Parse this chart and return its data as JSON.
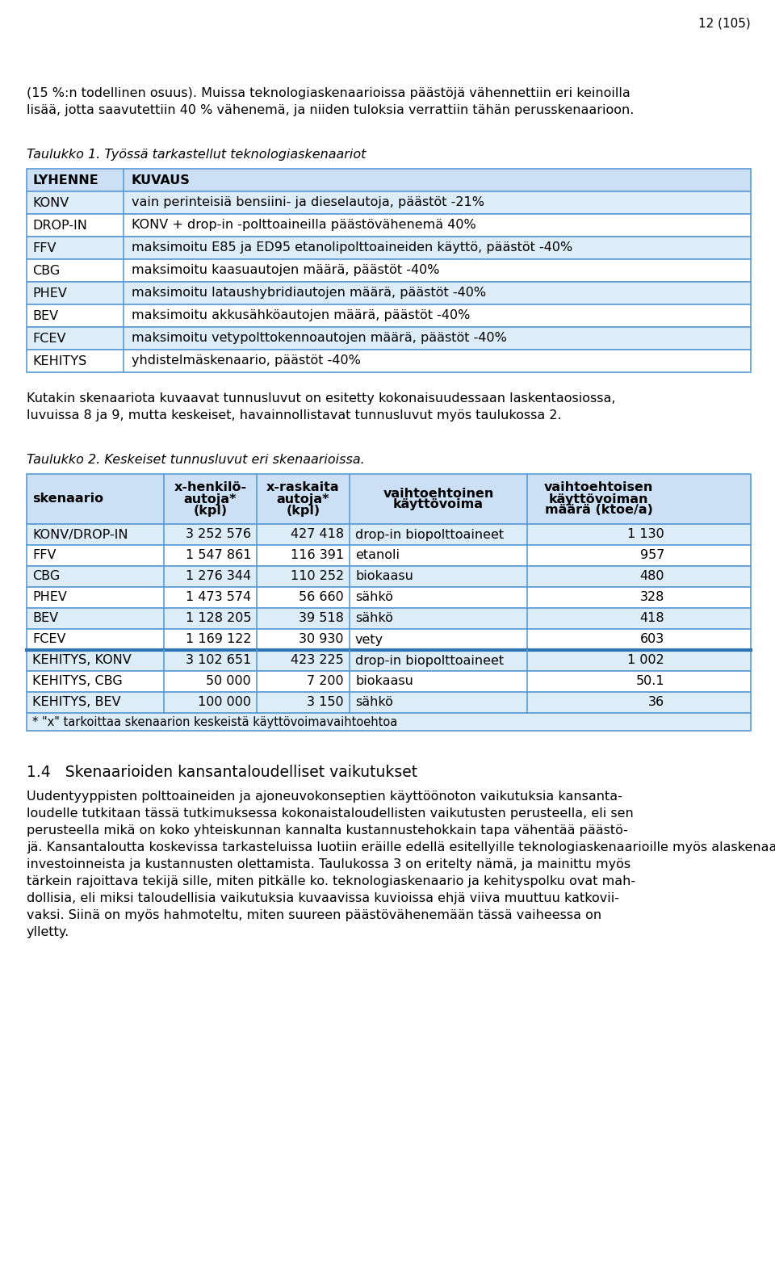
{
  "page_number": "12 (105)",
  "bg_color": "#ffffff",
  "text_color": "#000000",
  "header_bg": "#cce0f5",
  "row_bg_light": "#ddedf8",
  "row_bg_white": "#ffffff",
  "border_color": "#5b9bd5",
  "bold_border_color": "#2e75b6",
  "intro_text_line1": "(15 %:n todellinen osuus). Muissa teknologiaskenaarioissa päästöjä vähennettiin eri keinoilla",
  "intro_text_line2": "lisää, jotta saavutettiin 40 % vähenemä, ja niiden tuloksia verrattiin tähän perusskenaarioon.",
  "table1_caption": "Taulukko 1. Työssä tarkastellut teknologiaskenaariot",
  "table1_headers": [
    "LYHENNE",
    "KUVAUS"
  ],
  "table1_rows": [
    [
      "KONV",
      "vain perinteisiä bensiini- ja dieselautoja, päästöt -21%"
    ],
    [
      "DROP-IN",
      "KONV + drop-in -polttoaineilla päästövähenemä 40%"
    ],
    [
      "FFV",
      "maksimoitu E85 ja ED95 etanolipolttoaineiden käyttö, päästöt -40%"
    ],
    [
      "CBG",
      "maksimoitu kaasuautojen määrä, päästöt -40%"
    ],
    [
      "PHEV",
      "maksimoitu lataushybridiautojen määrä, päästöt -40%"
    ],
    [
      "BEV",
      "maksimoitu akkusähköautojen määrä, päästöt -40%"
    ],
    [
      "FCEV",
      "maksimoitu vetypolttokennoautojen määrä, päästöt -40%"
    ],
    [
      "KEHITYS",
      "yhdistelmäskenaario, päästöt -40%"
    ]
  ],
  "between_text_line1": "Kutakin skenaariota kuvaavat tunnusluvut on esitetty kokonaisuudessaan laskentaosiossa,",
  "between_text_line2": "luvuissa 8 ja 9, mutta keskeiset, havainnollistavat tunnusluvut myös taulukossa 2.",
  "table2_caption": "Taulukko 2. Keskeiset tunnusluvut eri skenaarioissa.",
  "table2_headers": [
    "skenaario",
    "x-henkilö-\nautoja*\n(kpl)",
    "x-raskaita\nautoja*\n(kpl)",
    "vaihtoehtoinen\nkäyttövoima",
    "vaihtoehtoisen\nkäyttövoiman\nmäärä (ktoe/a)"
  ],
  "table2_rows": [
    [
      "KONV/DROP-IN",
      "3 252 576",
      "427 418",
      "drop-in biopolttoaineet",
      "1 130"
    ],
    [
      "FFV",
      "1 547 861",
      "116 391",
      "etanoli",
      "957"
    ],
    [
      "CBG",
      "1 276 344",
      "110 252",
      "biokaasu",
      "480"
    ],
    [
      "PHEV",
      "1 473 574",
      "56 660",
      "sähkö",
      "328"
    ],
    [
      "BEV",
      "1 128 205",
      "39 518",
      "sähkö",
      "418"
    ],
    [
      "FCEV",
      "1 169 122",
      "30 930",
      "vety",
      "603"
    ],
    [
      "KEHITYS, KONV",
      "3 102 651",
      "423 225",
      "drop-in biopolttoaineet",
      "1 002"
    ],
    [
      "KEHITYS, CBG",
      "50 000",
      "7 200",
      "biokaasu",
      "50.1"
    ],
    [
      "KEHITYS, BEV",
      "100 000",
      "3 150",
      "sähkö",
      "36"
    ]
  ],
  "table2_note": "* \"x\" tarkoittaa skenaarion keskeistä käyttövoimavaihtoehtoa",
  "table2_bold_border_after_row": 5,
  "section_heading": "1.4   Skenaarioiden kansantaloudelliset vaikutukset",
  "body_text_lines": [
    "Uudentyyppisten polttoaineiden ja ajoneuvokonseptien käyttöönoton vaikutuksia kansanta-",
    "loudelle tutkitaan tässä tutkimuksessa kokonaistaloudellisten vaikutusten perusteella, eli sen",
    "perusteella mikä on koko yhteiskunnan kannalta kustannustehokkain tapa vähentää päästö-",
    "jä. Kansantaloutta koskevissa tarkasteluissa luotiin eräille edellä esitellyille teknologiaskenaarioille myös alaskenaarioita riippuen mm. polttoaineiden tuonnista vs. kotimaisuudesta,",
    "investoinneista ja kustannusten olettamista. Taulukossa 3 on eritelty nämä, ja mainittu myös",
    "tärkein rajoittava tekijä sille, miten pitkälle ko. teknologiaskenaario ja kehityspolku ovat mah-",
    "dollisia, eli miksi taloudellisia vaikutuksia kuvaavissa kuvioissa ehjä viiva muuttuu katkovii-",
    "vaksi. Siinä on myös hahmoteltu, miten suureen päästövähenemään tässä vaiheessa on",
    "ylletty."
  ]
}
